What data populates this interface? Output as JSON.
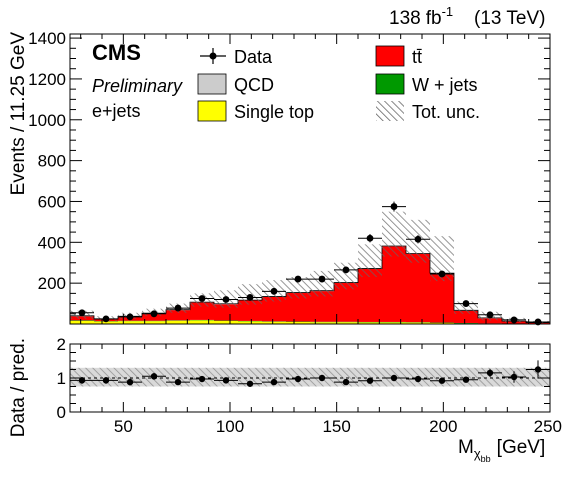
{
  "header": {
    "lumi": "138",
    "lumi_unit": "fb",
    "lumi_exp": "-1",
    "energy": "(13 TeV)"
  },
  "labels": {
    "experiment": "CMS",
    "status": "Preliminary",
    "channel": "e+jets"
  },
  "legend": {
    "data": "Data",
    "qcd": "QCD",
    "singletop": "Single top",
    "ttbar": "tt̄",
    "wjets": "W + jets",
    "unc": "Tot. unc."
  },
  "colors": {
    "ttbar": "#ff0000",
    "wjets": "#009900",
    "singletop": "#ffff00",
    "qcd": "#cccccc",
    "unc_hatch": "#777777",
    "data": "#000000"
  },
  "chart_data": [
    {
      "type": "bar",
      "stacked": true,
      "ylabel": "Events / 11.25 GeV",
      "ylim": [
        0,
        1420
      ],
      "yticks": [
        200,
        400,
        600,
        800,
        1000,
        1200,
        1400
      ],
      "bin_edges": [
        25,
        36.25,
        47.5,
        58.75,
        70,
        81.25,
        92.5,
        103.75,
        115,
        126.25,
        137.5,
        148.75,
        160,
        171.25,
        182.5,
        193.75,
        205,
        216.25,
        227.5,
        238.75,
        250
      ],
      "series": [
        {
          "name": "Single top",
          "values": [
            15,
            12,
            14,
            14,
            16,
            18,
            15,
            13,
            11,
            10,
            9,
            9,
            8,
            8,
            7,
            5,
            3,
            2,
            1,
            1
          ]
        },
        {
          "name": "W + jets",
          "values": [
            3,
            2,
            2,
            2,
            2,
            2,
            2,
            2,
            2,
            2,
            2,
            2,
            2,
            2,
            2,
            2,
            2,
            1,
            1,
            1
          ]
        },
        {
          "name": "tt̄",
          "values": [
            20,
            8,
            20,
            35,
            50,
            85,
            80,
            100,
            120,
            140,
            150,
            190,
            260,
            370,
            335,
            240,
            60,
            25,
            10,
            3
          ]
        },
        {
          "name": "QCD",
          "values": [
            2,
            2,
            2,
            2,
            2,
            2,
            2,
            2,
            2,
            2,
            2,
            2,
            2,
            2,
            2,
            2,
            2,
            2,
            2,
            2
          ]
        }
      ],
      "total_prediction": [
        40,
        24,
        38,
        53,
        70,
        107,
        99,
        117,
        135,
        154,
        163,
        203,
        272,
        382,
        346,
        249,
        67,
        30,
        14,
        7
      ],
      "uncertainty_band": {
        "lower": [
          25,
          12,
          25,
          40,
          55,
          85,
          80,
          95,
          110,
          125,
          135,
          170,
          230,
          330,
          300,
          210,
          50,
          18,
          8,
          3
        ],
        "upper": [
          65,
          38,
          55,
          75,
          100,
          150,
          165,
          195,
          215,
          230,
          260,
          300,
          390,
          550,
          510,
          430,
          110,
          60,
          30,
          15
        ]
      },
      "data": {
        "name": "Data",
        "y": [
          55,
          25,
          35,
          50,
          78,
          125,
          120,
          130,
          160,
          220,
          220,
          265,
          420,
          575,
          415,
          245,
          100,
          45,
          20,
          10
        ]
      }
    },
    {
      "type": "scatter",
      "xlabel": "M",
      "xlabel_sub": "χ",
      "xlabel_subsub": "bb",
      "xlabel_unit": "[GeV]",
      "ylabel": "Data / pred.",
      "xlim": [
        25,
        250
      ],
      "xticks": [
        50,
        100,
        150,
        200,
        250
      ],
      "ylim": [
        0,
        2
      ],
      "yticks": [
        0,
        1,
        2
      ],
      "band": [
        0.75,
        1.3
      ],
      "ratio": [
        0.93,
        0.93,
        0.88,
        1.05,
        0.88,
        0.97,
        0.93,
        0.83,
        0.88,
        0.97,
        1.0,
        0.88,
        0.92,
        1.0,
        0.97,
        0.92,
        0.95,
        1.15,
        1.03,
        1.25
      ],
      "ratio_err": [
        0.1,
        0.1,
        0.1,
        0.1,
        0.06,
        0.05,
        0.05,
        0.05,
        0.05,
        0.05,
        0.05,
        0.05,
        0.04,
        0.03,
        0.03,
        0.04,
        0.07,
        0.12,
        0.17,
        0.27
      ]
    }
  ]
}
